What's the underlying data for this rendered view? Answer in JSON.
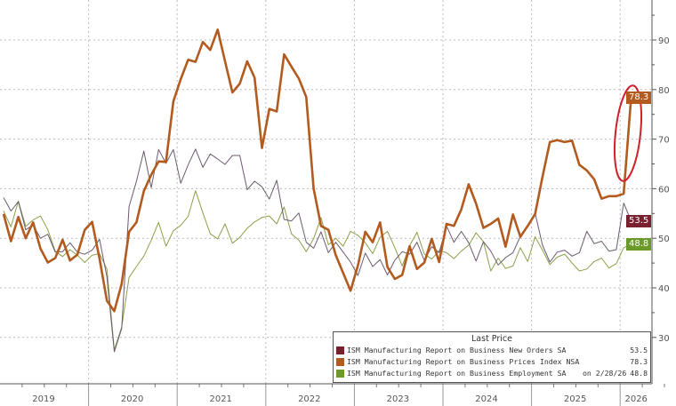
{
  "chart_data": {
    "type": "line",
    "x": [
      "2019-01",
      "2019-02",
      "2019-03",
      "2019-04",
      "2019-05",
      "2019-06",
      "2019-07",
      "2019-08",
      "2019-09",
      "2019-10",
      "2019-11",
      "2019-12",
      "2020-01",
      "2020-02",
      "2020-03",
      "2020-04",
      "2020-05",
      "2020-06",
      "2020-07",
      "2020-08",
      "2020-09",
      "2020-10",
      "2020-11",
      "2020-12",
      "2021-01",
      "2021-02",
      "2021-03",
      "2021-04",
      "2021-05",
      "2021-06",
      "2021-07",
      "2021-08",
      "2021-09",
      "2021-10",
      "2021-11",
      "2021-12",
      "2022-01",
      "2022-02",
      "2022-03",
      "2022-04",
      "2022-05",
      "2022-06",
      "2022-07",
      "2022-08",
      "2022-09",
      "2022-10",
      "2022-11",
      "2022-12",
      "2023-01",
      "2023-02",
      "2023-03",
      "2023-04",
      "2023-05",
      "2023-06",
      "2023-07",
      "2023-08",
      "2023-09",
      "2023-10",
      "2023-11",
      "2023-12",
      "2024-01",
      "2024-02",
      "2024-03",
      "2024-04",
      "2024-05",
      "2024-06",
      "2024-07",
      "2024-08",
      "2024-09",
      "2024-10",
      "2024-11",
      "2024-12",
      "2025-01",
      "2025-02",
      "2025-03",
      "2025-04",
      "2025-05",
      "2025-06",
      "2025-07",
      "2025-08",
      "2025-09",
      "2025-10",
      "2025-11",
      "2025-12",
      "2026-01",
      "2026-02"
    ],
    "series": [
      {
        "name": "ISM Manufacturing Report on Business New Orders SA",
        "color": "#6b5a6e",
        "tag_color": "#7a1f2e",
        "last": "53.5",
        "values": [
          58.2,
          55.5,
          57.4,
          51.7,
          52.7,
          50.0,
          50.8,
          47.2,
          47.3,
          49.1,
          47.2,
          46.8,
          47.6,
          49.8,
          42.2,
          27.1,
          31.8,
          56.4,
          61.5,
          67.6,
          60.2,
          67.9,
          65.1,
          67.9,
          61.1,
          64.8,
          68.0,
          64.3,
          67.0,
          66.0,
          64.9,
          66.7,
          66.7,
          59.8,
          61.5,
          60.4,
          57.9,
          61.7,
          53.8,
          53.5,
          55.1,
          49.2,
          48.0,
          51.3,
          47.1,
          49.2,
          47.2,
          45.2,
          42.5,
          47.0,
          44.3,
          45.7,
          42.6,
          45.6,
          47.3,
          46.8,
          49.2,
          45.5,
          48.3,
          47.1,
          52.5,
          49.2,
          51.4,
          49.1,
          45.4,
          49.3,
          47.4,
          44.6,
          46.1,
          47.1,
          50.4,
          52.5,
          55.1,
          48.6,
          45.2,
          47.2,
          47.6,
          46.4,
          47.1,
          51.4,
          48.9,
          49.4,
          47.4,
          47.7,
          57.1,
          53.5
        ]
      },
      {
        "name": "ISM Manufacturing Report on Business Prices Index NSA",
        "color": "#b35a1f",
        "tag_color": "#b35a1f",
        "last": "78.3",
        "values": [
          54.9,
          49.4,
          54.3,
          50.0,
          53.2,
          47.9,
          45.1,
          46.0,
          49.7,
          45.5,
          46.7,
          51.7,
          53.3,
          45.9,
          37.4,
          35.3,
          40.8,
          51.3,
          53.2,
          59.5,
          62.8,
          65.5,
          65.4,
          77.6,
          82.1,
          86.0,
          85.6,
          89.6,
          88.0,
          92.1,
          85.7,
          79.4,
          81.2,
          85.7,
          82.4,
          68.2,
          76.1,
          75.6,
          87.1,
          84.6,
          82.2,
          78.5,
          60.0,
          52.5,
          51.7,
          46.6,
          43.0,
          39.4,
          44.5,
          51.3,
          49.2,
          53.2,
          44.2,
          41.8,
          42.6,
          48.4,
          43.8,
          45.1,
          49.9,
          45.2,
          52.9,
          52.5,
          55.8,
          60.9,
          57.0,
          52.1,
          52.9,
          54.0,
          48.3,
          54.8,
          50.3,
          52.5,
          54.9,
          62.4,
          69.4,
          69.8,
          69.4,
          69.7,
          64.8,
          63.7,
          61.9,
          58.0,
          58.5,
          58.5,
          59.0,
          78.3
        ]
      },
      {
        "name": "ISM Manufacturing Report on Business Employment SA",
        "color": "#8aa04a",
        "tag_color": "#6b9a2a",
        "last": "48.8",
        "date_note": "on 2/28/26",
        "values": [
          55.5,
          52.3,
          57.5,
          52.4,
          53.7,
          54.5,
          51.7,
          47.4,
          46.3,
          47.7,
          46.6,
          45.1,
          46.6,
          46.9,
          43.8,
          27.5,
          32.1,
          42.1,
          44.3,
          46.4,
          49.6,
          53.2,
          48.4,
          51.5,
          52.6,
          54.4,
          59.6,
          55.1,
          50.9,
          49.9,
          52.9,
          49.0,
          50.2,
          52.0,
          53.3,
          54.2,
          54.5,
          52.9,
          56.3,
          50.9,
          49.6,
          47.3,
          49.9,
          54.2,
          48.7,
          50.0,
          48.4,
          51.4,
          50.6,
          49.1,
          46.9,
          50.2,
          51.4,
          48.1,
          44.4,
          48.5,
          51.2,
          46.8,
          45.8,
          47.5,
          47.1,
          45.9,
          47.4,
          48.6,
          51.1,
          49.3,
          43.4,
          46.0,
          43.9,
          44.4,
          48.1,
          45.3,
          50.3,
          47.6,
          44.7,
          46.2,
          46.8,
          45.0,
          43.4,
          43.8,
          45.3,
          46.0,
          44.0,
          44.9,
          48.1,
          48.8
        ]
      }
    ],
    "y_ticks": [
      "30",
      "40",
      "50",
      "60",
      "70",
      "80",
      "90"
    ],
    "ylim": [
      27,
      98
    ],
    "x_tick_labels": [
      "2019",
      "2020",
      "2021",
      "2022",
      "2023",
      "2024",
      "2025",
      "2026"
    ],
    "grid": true,
    "legend": {
      "title": "Last Price",
      "placement": "bottom-right"
    },
    "annotation": {
      "type": "ellipse",
      "color": "#d0202a",
      "around": "2026 prices spike"
    }
  }
}
